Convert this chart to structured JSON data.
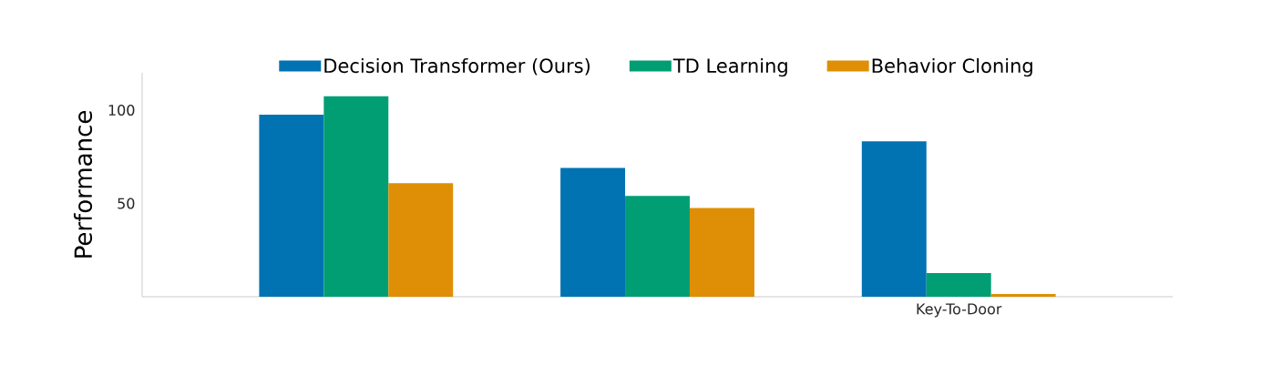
{
  "chart_data": {
    "type": "bar",
    "ylabel": "Performance",
    "categories": [
      null,
      null,
      "Key-To-Door"
    ],
    "series": [
      {
        "name": "Decision Transformer (Ours)",
        "color": "#0173b2",
        "values": [
          97.5,
          69,
          83.3
        ]
      },
      {
        "name": "TD Learning",
        "color": "#029e73",
        "values": [
          107.4,
          54,
          12.7
        ]
      },
      {
        "name": "Behavior Cloning",
        "color": "#de8f05",
        "values": [
          60.8,
          47.5,
          1.5
        ]
      }
    ],
    "ylim": [
      0,
      120
    ],
    "yticks": [
      50,
      100
    ],
    "grid": false,
    "legend": "top"
  }
}
